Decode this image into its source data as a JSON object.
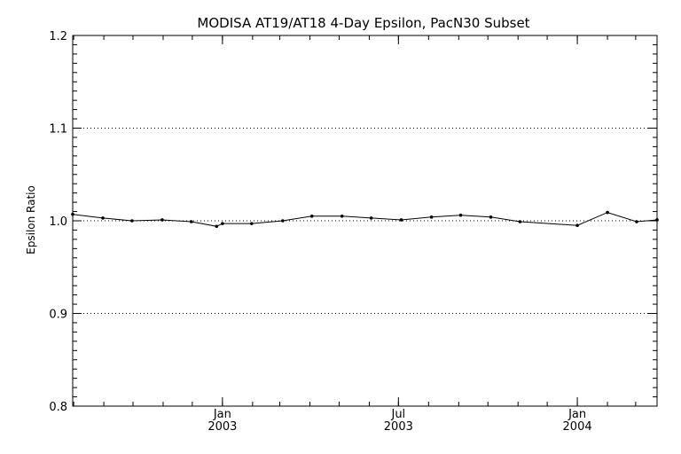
{
  "chart_data": {
    "type": "line",
    "title": "MODISA AT19/AT18 4-Day Epsilon, PacN30 Subset",
    "xlabel": "",
    "ylabel": "Epsilon Ratio",
    "ylim": [
      0.8,
      1.2
    ],
    "xlim": [
      "2002-07-31",
      "2004-03-23"
    ],
    "yticks": [
      {
        "v": 0.8,
        "label": "0.8"
      },
      {
        "v": 0.9,
        "label": "0.9"
      },
      {
        "v": 1.0,
        "label": "1.0"
      },
      {
        "v": 1.1,
        "label": "1.1"
      },
      {
        "v": 1.2,
        "label": "1.2"
      }
    ],
    "xticks": [
      {
        "date": "2003-01-01",
        "month": "Jan",
        "year": "2003"
      },
      {
        "date": "2003-07-01",
        "month": "Jul",
        "year": "2003"
      },
      {
        "date": "2004-01-01",
        "month": "Jan",
        "year": "2004"
      }
    ],
    "grid": {
      "y_dotted_at": [
        0.9,
        1.0,
        1.1
      ]
    },
    "series": [
      {
        "points": [
          {
            "x": "2002-07-31",
            "y": 1.007
          },
          {
            "x": "2002-08-31",
            "y": 1.003
          },
          {
            "x": "2002-09-30",
            "y": 1.0
          },
          {
            "x": "2002-10-31",
            "y": 1.001
          },
          {
            "x": "2002-11-30",
            "y": 0.999
          },
          {
            "x": "2002-12-26",
            "y": 0.994
          },
          {
            "x": "2003-01-01",
            "y": 0.997
          },
          {
            "x": "2003-01-31",
            "y": 0.997
          },
          {
            "x": "2003-03-04",
            "y": 1.0
          },
          {
            "x": "2003-04-03",
            "y": 1.005
          },
          {
            "x": "2003-05-04",
            "y": 1.005
          },
          {
            "x": "2003-06-03",
            "y": 1.003
          },
          {
            "x": "2003-07-04",
            "y": 1.001
          },
          {
            "x": "2003-08-04",
            "y": 1.004
          },
          {
            "x": "2003-09-03",
            "y": 1.006
          },
          {
            "x": "2003-10-04",
            "y": 1.004
          },
          {
            "x": "2003-11-03",
            "y": 0.999
          },
          {
            "x": "2004-01-01",
            "y": 0.995
          },
          {
            "x": "2004-02-01",
            "y": 1.009
          },
          {
            "x": "2004-03-02",
            "y": 0.999
          },
          {
            "x": "2004-03-23",
            "y": 1.001
          }
        ]
      }
    ]
  }
}
